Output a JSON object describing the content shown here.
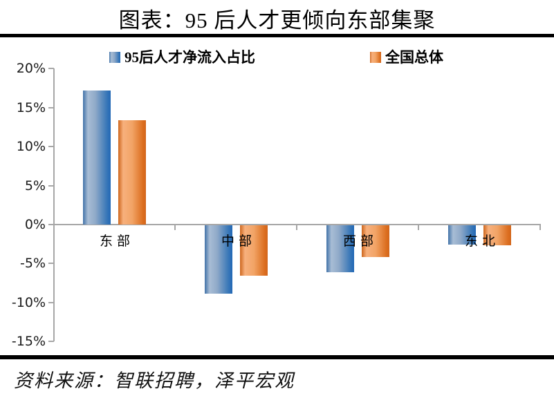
{
  "title": "图表：95 后人才更倾向东部集聚",
  "source": "资料来源：智联招聘，泽平宏观",
  "colors": {
    "series1_blue": "#2E6DB4",
    "series2_orange": "#ED7D31",
    "axis": "#A6A6A6",
    "rule": "#000000"
  },
  "chart_data": {
    "type": "bar",
    "title": "图表：95 后人才更倾向东部集聚",
    "categories": [
      "东部",
      "中部",
      "西部",
      "东北"
    ],
    "series": [
      {
        "name": "95后人才净流入占比",
        "color": "#2E6DB4",
        "values": [
          17.2,
          -8.8,
          -6.0,
          -2.5
        ]
      },
      {
        "name": "全国总体",
        "color": "#ED7D31",
        "values": [
          13.4,
          -6.5,
          -4.1,
          -2.6
        ]
      }
    ],
    "ylim": [
      -15,
      20
    ],
    "ytick_step": 5,
    "yticks": [
      "20%",
      "15%",
      "10%",
      "5%",
      "0%",
      "-5%",
      "-10%",
      "-15%"
    ],
    "xlabel": "",
    "ylabel": "",
    "grid": false,
    "legend_position": "top"
  }
}
